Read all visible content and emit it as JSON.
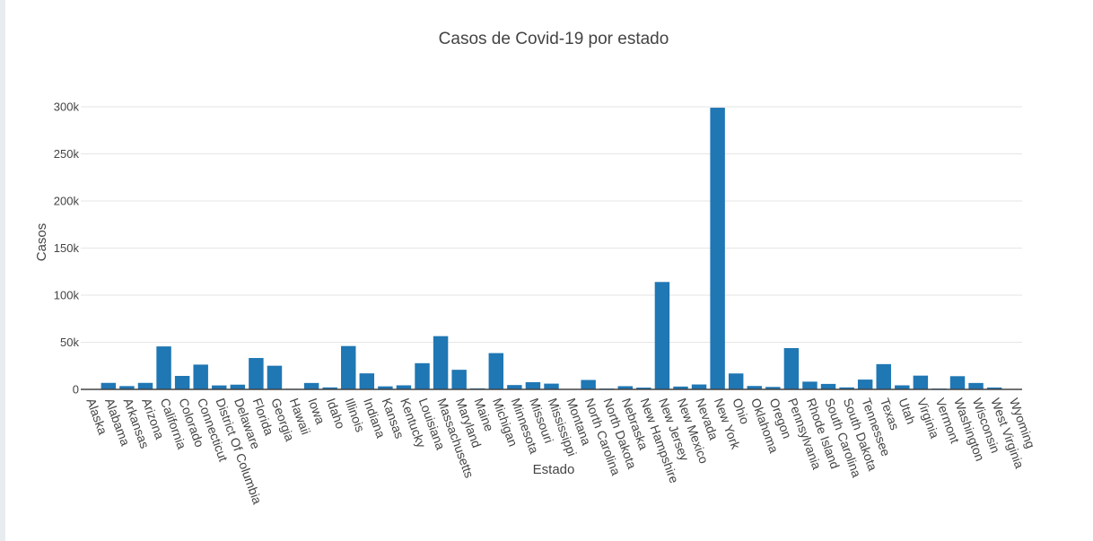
{
  "chart_data": {
    "type": "bar",
    "title": "Casos de Covid-19 por estado",
    "xlabel": "Estado",
    "ylabel": "Casos",
    "ylim": [
      0,
      310000
    ],
    "yticks": [
      0,
      50000,
      100000,
      150000,
      200000,
      250000,
      300000
    ],
    "ytick_labels": [
      "0",
      "50k",
      "100k",
      "150k",
      "200k",
      "250k",
      "300k"
    ],
    "grid": true,
    "legend": "none",
    "bar_color": "#1f77b4",
    "categories": [
      "Alaska",
      "Alabama",
      "Arkansas",
      "Arizona",
      "California",
      "Colorado",
      "Connecticut",
      "District Of Columbia",
      "Delaware",
      "Florida",
      "Georgia",
      "Hawaii",
      "Iowa",
      "Idaho",
      "Illinois",
      "Indiana",
      "Kansas",
      "Kentucky",
      "Louisiana",
      "Massachusetts",
      "Maryland",
      "Maine",
      "Michigan",
      "Minnesota",
      "Missouri",
      "Mississippi",
      "Montana",
      "North Carolina",
      "North Dakota",
      "Nebraska",
      "New Hampshire",
      "New Jersey",
      "New Mexico",
      "Nevada",
      "New York",
      "Ohio",
      "Oklahoma",
      "Oregon",
      "Pennsylvania",
      "Rhode Island",
      "South Carolina",
      "South Dakota",
      "Tennessee",
      "Texas",
      "Utah",
      "Virginia",
      "Vermont",
      "Washington",
      "Wisconsin",
      "West Virginia",
      "Wyoming"
    ],
    "values": [
      400,
      6900,
      3500,
      6900,
      45600,
      14300,
      26300,
      4200,
      5000,
      33300,
      25100,
      600,
      6800,
      2100,
      46000,
      17000,
      3200,
      4300,
      27800,
      56500,
      20800,
      1100,
      38500,
      4600,
      7600,
      6100,
      500,
      10000,
      900,
      3400,
      1900,
      114000,
      3000,
      5200,
      299000,
      16900,
      3600,
      2600,
      43800,
      8200,
      5800,
      2100,
      10400,
      26800,
      4300,
      14600,
      900,
      14000,
      6800,
      2000,
      400
    ]
  }
}
